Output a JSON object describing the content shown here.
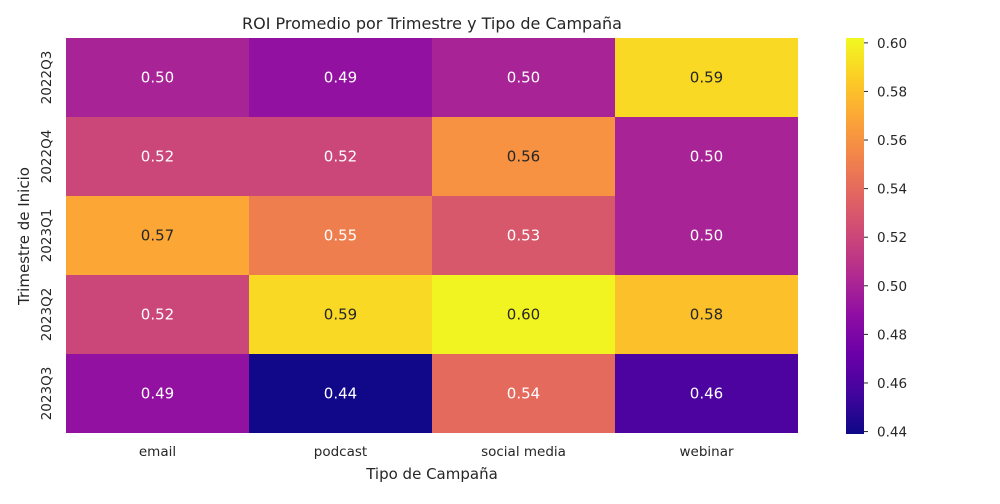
{
  "chart_data": {
    "type": "heatmap",
    "title": "ROI Promedio por Trimestre y Tipo de Campaña",
    "xlabel": "Tipo de Campaña",
    "ylabel": "Trimestre de Inicio",
    "x_categories": [
      "email",
      "podcast",
      "social media",
      "webinar"
    ],
    "y_categories": [
      "2022Q3",
      "2022Q4",
      "2023Q1",
      "2023Q2",
      "2023Q3"
    ],
    "values": [
      [
        0.5,
        0.49,
        0.5,
        0.59
      ],
      [
        0.52,
        0.52,
        0.56,
        0.5
      ],
      [
        0.57,
        0.55,
        0.53,
        0.5
      ],
      [
        0.52,
        0.59,
        0.6,
        0.58
      ],
      [
        0.49,
        0.44,
        0.54,
        0.46
      ]
    ],
    "colormap": "plasma",
    "vmin": 0.439,
    "vmax": 0.602,
    "colorbar_ticks": [
      "0.44",
      "0.46",
      "0.48",
      "0.50",
      "0.52",
      "0.54",
      "0.56",
      "0.58",
      "0.60"
    ],
    "annotations_shown": true
  }
}
